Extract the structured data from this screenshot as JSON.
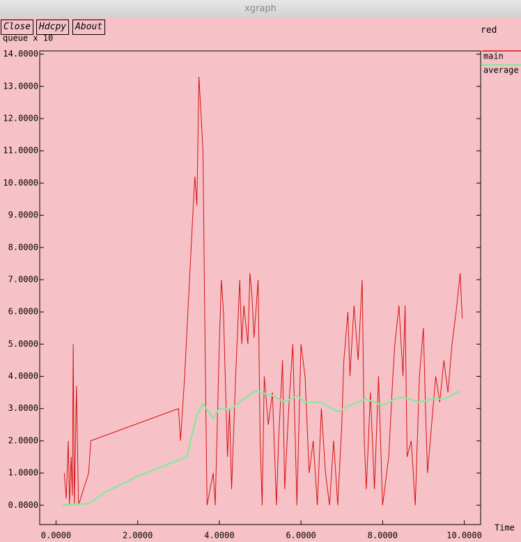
{
  "window": {
    "title": "xgraph",
    "buttons": [
      "Close",
      "Hdcpy",
      "About"
    ],
    "graph_name": "red"
  },
  "chart_data": {
    "type": "line",
    "y_label": "queue x 10",
    "x_label": "Time",
    "xlim": [
      -0.4,
      10.4
    ],
    "ylim": [
      -0.6,
      14.1
    ],
    "xticks": [
      {
        "value": 0,
        "label": "0.0000"
      },
      {
        "value": 2,
        "label": "2.0000"
      },
      {
        "value": 4,
        "label": "4.0000"
      },
      {
        "value": 6,
        "label": "6.0000"
      },
      {
        "value": 8,
        "label": "8.0000"
      },
      {
        "value": 10,
        "label": "10.0000"
      }
    ],
    "yticks": [
      {
        "value": 0,
        "label": "0.0000"
      },
      {
        "value": 1,
        "label": "1.0000"
      },
      {
        "value": 2,
        "label": "2.0000"
      },
      {
        "value": 3,
        "label": "3.0000"
      },
      {
        "value": 4,
        "label": "4.0000"
      },
      {
        "value": 5,
        "label": "5.0000"
      },
      {
        "value": 6,
        "label": "6.0000"
      },
      {
        "value": 7,
        "label": "7.0000"
      },
      {
        "value": 8,
        "label": "8.0000"
      },
      {
        "value": 9,
        "label": "9.0000"
      },
      {
        "value": 10,
        "label": "10.0000"
      },
      {
        "value": 11,
        "label": "11.0000"
      },
      {
        "value": 12,
        "label": "12.0000"
      },
      {
        "value": 13,
        "label": "13.0000"
      },
      {
        "value": 14,
        "label": "14.0000"
      }
    ],
    "series": [
      {
        "name": "main",
        "color": "#d41010",
        "x": [
          0.2,
          0.25,
          0.3,
          0.33,
          0.37,
          0.4,
          0.42,
          0.45,
          0.5,
          0.55,
          0.8,
          0.85,
          3.0,
          3.05,
          3.15,
          3.25,
          3.35,
          3.4,
          3.45,
          3.5,
          3.55,
          3.6,
          3.65,
          3.7,
          3.85,
          3.9,
          4.0,
          4.05,
          4.1,
          4.2,
          4.25,
          4.3,
          4.4,
          4.5,
          4.55,
          4.6,
          4.7,
          4.75,
          4.8,
          4.85,
          4.95,
          5.0,
          5.05,
          5.1,
          5.2,
          5.3,
          5.4,
          5.45,
          5.55,
          5.6,
          5.7,
          5.8,
          5.9,
          6.0,
          6.1,
          6.2,
          6.3,
          6.4,
          6.5,
          6.6,
          6.7,
          6.8,
          6.9,
          7.0,
          7.05,
          7.15,
          7.2,
          7.3,
          7.4,
          7.5,
          7.55,
          7.6,
          7.7,
          7.8,
          7.9,
          8.0,
          8.15,
          8.25,
          8.3,
          8.4,
          8.5,
          8.55,
          8.6,
          8.7,
          8.8,
          8.9,
          9.0,
          9.05,
          9.1,
          9.2,
          9.3,
          9.4,
          9.5,
          9.6,
          9.7,
          9.8,
          9.9,
          9.95
        ],
        "values": [
          1.0,
          0.2,
          2.0,
          0,
          1.5,
          0.3,
          5.0,
          0,
          3.7,
          0,
          1.0,
          2.0,
          3.0,
          2.0,
          4.0,
          6.5,
          9.0,
          10.2,
          9.3,
          13.3,
          12.2,
          11.0,
          5.0,
          0,
          1.0,
          0,
          5.0,
          7.0,
          6.0,
          1.5,
          3.0,
          0.5,
          4.0,
          7.0,
          5.0,
          6.2,
          5.0,
          7.2,
          6.5,
          5.2,
          7.0,
          2.0,
          0,
          4.0,
          2.5,
          3.5,
          0,
          2.0,
          4.5,
          0.5,
          3.0,
          5.0,
          0,
          5.0,
          4.0,
          1.0,
          2.0,
          0,
          3.0,
          1.0,
          0,
          2.0,
          0,
          2.5,
          4.5,
          6.0,
          4.0,
          6.2,
          4.5,
          7.0,
          2.0,
          0.5,
          3.5,
          0.5,
          4.0,
          0,
          1.5,
          4.0,
          5.0,
          6.2,
          4.0,
          6.2,
          1.5,
          2.0,
          0,
          4.0,
          5.5,
          3.0,
          1.0,
          2.5,
          4.0,
          3.2,
          4.5,
          3.5,
          5.0,
          6.0,
          7.2,
          5.8
        ]
      },
      {
        "name": "average",
        "color": "#8fe6a0",
        "x": [
          0.15,
          0.8,
          1.2,
          2.0,
          2.5,
          3.0,
          3.2,
          3.45,
          3.6,
          3.85,
          4.0,
          4.3,
          4.6,
          4.9,
          5.3,
          5.6,
          5.9,
          6.1,
          6.5,
          6.9,
          7.2,
          7.6,
          8.0,
          8.3,
          8.5,
          8.9,
          9.2,
          9.5,
          9.9
        ],
        "values": [
          0,
          0.05,
          0.4,
          0.9,
          1.15,
          1.4,
          1.5,
          2.8,
          3.15,
          2.7,
          3.0,
          3.0,
          3.3,
          3.55,
          3.4,
          3.2,
          3.4,
          3.2,
          3.2,
          2.9,
          3.1,
          3.3,
          3.1,
          3.3,
          3.35,
          3.2,
          3.3,
          3.3,
          3.55
        ]
      }
    ]
  }
}
